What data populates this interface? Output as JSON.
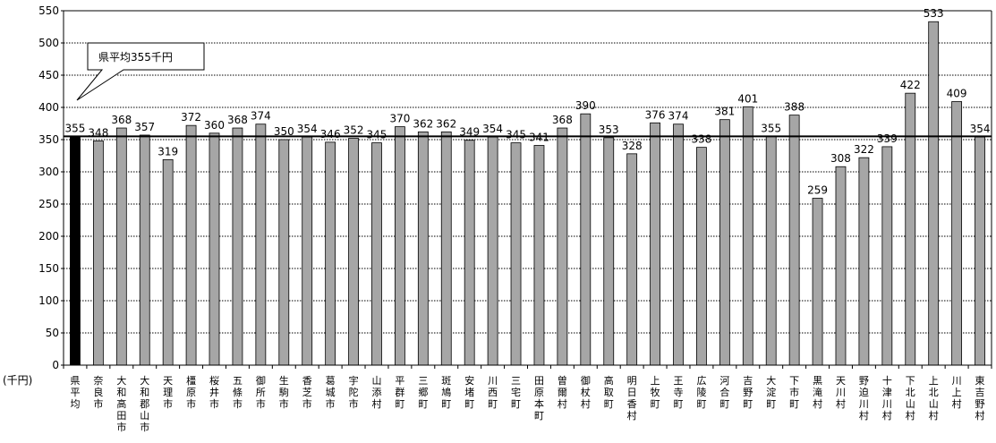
{
  "chart_data": {
    "type": "bar",
    "unit_label": "(千円)",
    "ylim": [
      0,
      550
    ],
    "ytick_step": 50,
    "grid": true,
    "reference_line": {
      "value": 355,
      "label": "県平均355千円"
    },
    "highlight_color": "#000000",
    "bar_color": "#a6a6a6",
    "categories": [
      "県平均",
      "奈良市",
      "大和高田市",
      "大和郡山市",
      "天理市",
      "橿原市",
      "桜井市",
      "五條市",
      "御所市",
      "生駒市",
      "香芝市",
      "葛城市",
      "宇陀市",
      "山添村",
      "平群町",
      "三郷町",
      "斑鳩町",
      "安堵町",
      "川西町",
      "三宅町",
      "田原本町",
      "曽爾村",
      "御杖村",
      "高取町",
      "明日香村",
      "上牧町",
      "王寺町",
      "広陵町",
      "河合町",
      "吉野町",
      "大淀町",
      "下市町",
      "黒滝村",
      "天川村",
      "野迫川村",
      "十津川村",
      "下北山村",
      "上北山村",
      "川上村",
      "東吉野村"
    ],
    "values": [
      355,
      348,
      368,
      357,
      319,
      372,
      360,
      368,
      374,
      350,
      354,
      346,
      352,
      345,
      370,
      362,
      362,
      349,
      354,
      345,
      341,
      368,
      390,
      353,
      328,
      376,
      374,
      338,
      381,
      401,
      355,
      388,
      259,
      308,
      322,
      339,
      422,
      533,
      409,
      354
    ]
  }
}
